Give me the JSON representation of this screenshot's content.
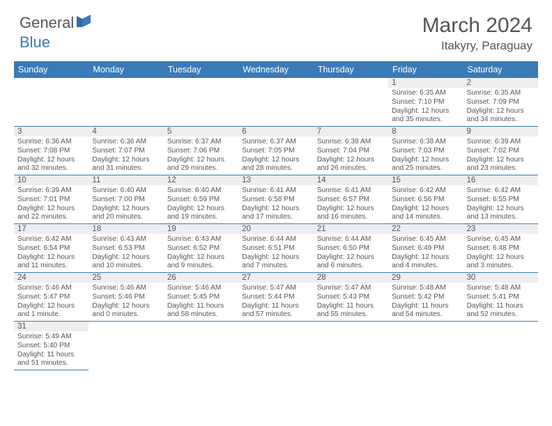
{
  "brand": {
    "part1": "General",
    "part2": "Blue"
  },
  "title": "March 2024",
  "location": "Itakyry, Paraguay",
  "colors": {
    "header_bg": "#3a7ab8",
    "header_fg": "#ffffff",
    "daynum_bg": "#eeeeee",
    "border": "#3a7ab8",
    "text": "#555555",
    "brand_gray": "#555555",
    "brand_blue": "#3a7ab8",
    "background": "#ffffff"
  },
  "typography": {
    "title_fontsize": 30,
    "location_fontsize": 17,
    "dayheader_fontsize": 12.5,
    "daynum_fontsize": 11.5,
    "cell_fontsize": 10.2,
    "logo_fontsize": 22
  },
  "weekdays": [
    "Sunday",
    "Monday",
    "Tuesday",
    "Wednesday",
    "Thursday",
    "Friday",
    "Saturday"
  ],
  "grid": [
    [
      null,
      null,
      null,
      null,
      null,
      {
        "day": "1",
        "sunrise": "6:35 AM",
        "sunset": "7:10 PM",
        "daylight": "12 hours and 35 minutes."
      },
      {
        "day": "2",
        "sunrise": "6:35 AM",
        "sunset": "7:09 PM",
        "daylight": "12 hours and 34 minutes."
      }
    ],
    [
      {
        "day": "3",
        "sunrise": "6:36 AM",
        "sunset": "7:08 PM",
        "daylight": "12 hours and 32 minutes."
      },
      {
        "day": "4",
        "sunrise": "6:36 AM",
        "sunset": "7:07 PM",
        "daylight": "12 hours and 31 minutes."
      },
      {
        "day": "5",
        "sunrise": "6:37 AM",
        "sunset": "7:06 PM",
        "daylight": "12 hours and 29 minutes."
      },
      {
        "day": "6",
        "sunrise": "6:37 AM",
        "sunset": "7:05 PM",
        "daylight": "12 hours and 28 minutes."
      },
      {
        "day": "7",
        "sunrise": "6:38 AM",
        "sunset": "7:04 PM",
        "daylight": "12 hours and 26 minutes."
      },
      {
        "day": "8",
        "sunrise": "6:38 AM",
        "sunset": "7:03 PM",
        "daylight": "12 hours and 25 minutes."
      },
      {
        "day": "9",
        "sunrise": "6:39 AM",
        "sunset": "7:02 PM",
        "daylight": "12 hours and 23 minutes."
      }
    ],
    [
      {
        "day": "10",
        "sunrise": "6:39 AM",
        "sunset": "7:01 PM",
        "daylight": "12 hours and 22 minutes."
      },
      {
        "day": "11",
        "sunrise": "6:40 AM",
        "sunset": "7:00 PM",
        "daylight": "12 hours and 20 minutes."
      },
      {
        "day": "12",
        "sunrise": "6:40 AM",
        "sunset": "6:59 PM",
        "daylight": "12 hours and 19 minutes."
      },
      {
        "day": "13",
        "sunrise": "6:41 AM",
        "sunset": "6:58 PM",
        "daylight": "12 hours and 17 minutes."
      },
      {
        "day": "14",
        "sunrise": "6:41 AM",
        "sunset": "6:57 PM",
        "daylight": "12 hours and 16 minutes."
      },
      {
        "day": "15",
        "sunrise": "6:42 AM",
        "sunset": "6:56 PM",
        "daylight": "12 hours and 14 minutes."
      },
      {
        "day": "16",
        "sunrise": "6:42 AM",
        "sunset": "6:55 PM",
        "daylight": "12 hours and 13 minutes."
      }
    ],
    [
      {
        "day": "17",
        "sunrise": "6:42 AM",
        "sunset": "6:54 PM",
        "daylight": "12 hours and 11 minutes."
      },
      {
        "day": "18",
        "sunrise": "6:43 AM",
        "sunset": "6:53 PM",
        "daylight": "12 hours and 10 minutes."
      },
      {
        "day": "19",
        "sunrise": "6:43 AM",
        "sunset": "6:52 PM",
        "daylight": "12 hours and 9 minutes."
      },
      {
        "day": "20",
        "sunrise": "6:44 AM",
        "sunset": "6:51 PM",
        "daylight": "12 hours and 7 minutes."
      },
      {
        "day": "21",
        "sunrise": "6:44 AM",
        "sunset": "6:50 PM",
        "daylight": "12 hours and 6 minutes."
      },
      {
        "day": "22",
        "sunrise": "6:45 AM",
        "sunset": "6:49 PM",
        "daylight": "12 hours and 4 minutes."
      },
      {
        "day": "23",
        "sunrise": "6:45 AM",
        "sunset": "6:48 PM",
        "daylight": "12 hours and 3 minutes."
      }
    ],
    [
      {
        "day": "24",
        "sunrise": "5:46 AM",
        "sunset": "5:47 PM",
        "daylight": "12 hours and 1 minute."
      },
      {
        "day": "25",
        "sunrise": "5:46 AM",
        "sunset": "5:46 PM",
        "daylight": "12 hours and 0 minutes."
      },
      {
        "day": "26",
        "sunrise": "5:46 AM",
        "sunset": "5:45 PM",
        "daylight": "11 hours and 58 minutes."
      },
      {
        "day": "27",
        "sunrise": "5:47 AM",
        "sunset": "5:44 PM",
        "daylight": "11 hours and 57 minutes."
      },
      {
        "day": "28",
        "sunrise": "5:47 AM",
        "sunset": "5:43 PM",
        "daylight": "11 hours and 55 minutes."
      },
      {
        "day": "29",
        "sunrise": "5:48 AM",
        "sunset": "5:42 PM",
        "daylight": "11 hours and 54 minutes."
      },
      {
        "day": "30",
        "sunrise": "5:48 AM",
        "sunset": "5:41 PM",
        "daylight": "11 hours and 52 minutes."
      }
    ],
    [
      {
        "day": "31",
        "sunrise": "5:49 AM",
        "sunset": "5:40 PM",
        "daylight": "11 hours and 51 minutes."
      },
      null,
      null,
      null,
      null,
      null,
      null
    ]
  ],
  "labels": {
    "sunrise_prefix": "Sunrise: ",
    "sunset_prefix": "Sunset: ",
    "daylight_prefix": "Daylight: "
  }
}
